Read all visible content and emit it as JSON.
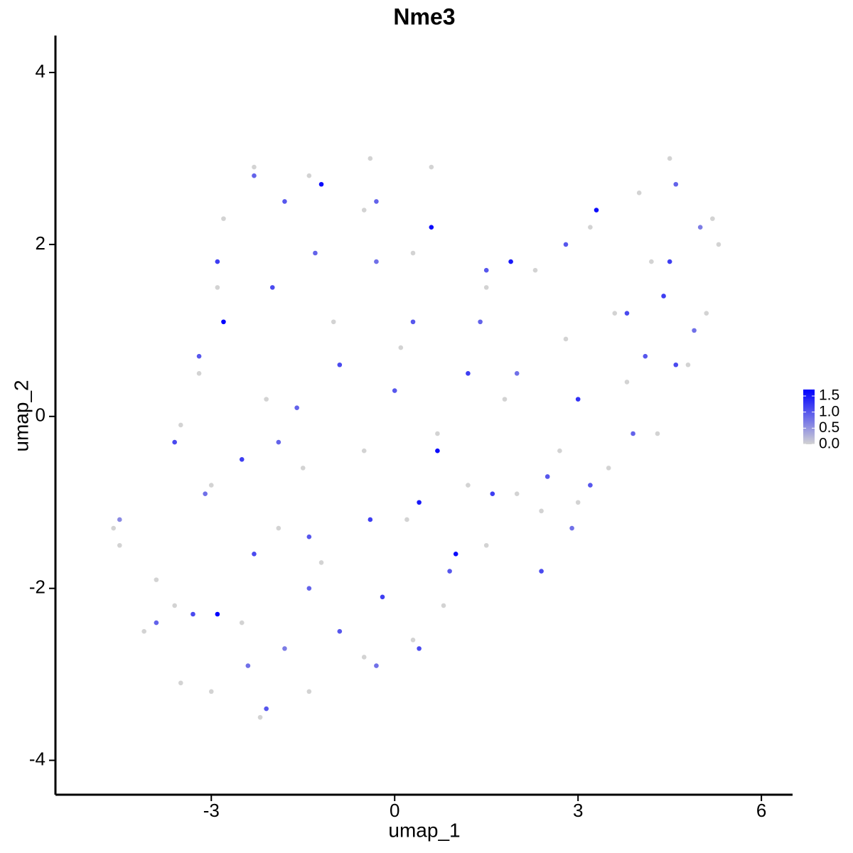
{
  "chart_data": {
    "type": "scatter",
    "title": "Nme3",
    "x_label": "umap_1",
    "y_label": "umap_2",
    "x": [
      -4.6,
      -4.5,
      -3.9,
      -4.1,
      -3.5,
      -3.0,
      -2.2,
      -1.4,
      -0.5,
      0.3,
      0.8,
      1.5,
      2.4,
      3.0,
      3.5,
      4.3,
      4.8,
      5.1,
      5.3,
      5.2,
      4.5,
      4.0,
      3.2,
      2.3,
      1.5,
      0.3,
      -0.5,
      -1.4,
      -2.3,
      -2.8,
      -2.9,
      -3.2,
      -3.5,
      -3.0,
      -1.5,
      -0.5,
      0.7,
      1.8,
      2.8,
      3.6,
      4.2,
      0.1,
      -1.0,
      -2.1,
      -1.2,
      0.2,
      1.2,
      2.0,
      2.7,
      3.8,
      -0.4,
      0.6,
      -2.5,
      -3.6,
      -1.9,
      -4.5,
      -3.9,
      -3.3,
      -2.9,
      -2.4,
      -2.1,
      -1.8,
      -1.4,
      -0.9,
      -0.3,
      0.4,
      0.9,
      1.0,
      1.6,
      2.4,
      2.9,
      3.2,
      3.9,
      4.6,
      4.9,
      5.0,
      4.6,
      4.5,
      3.3,
      2.8,
      1.9,
      1.5,
      0.6,
      -0.3,
      -1.2,
      -1.8,
      -2.3,
      -2.9,
      -2.8,
      -3.2,
      -3.6,
      -3.1,
      -2.5,
      -1.6,
      -0.9,
      -0.3,
      0.3,
      0.7,
      0.4,
      -0.4,
      -1.4,
      -2.3,
      1.2,
      2.0,
      3.0,
      3.8,
      4.1,
      -2.0,
      -1.3,
      0.0,
      1.4,
      2.5,
      -0.2,
      -1.9,
      4.4
    ],
    "y": [
      -1.3,
      -1.5,
      -1.9,
      -2.5,
      -3.1,
      -3.2,
      -3.5,
      -3.2,
      -2.8,
      -2.6,
      -2.2,
      -1.5,
      -1.1,
      -1.0,
      -0.6,
      -0.2,
      0.6,
      1.2,
      2.0,
      2.3,
      3.0,
      2.6,
      2.2,
      1.7,
      1.5,
      1.9,
      2.4,
      2.8,
      2.9,
      2.3,
      1.5,
      0.5,
      -0.1,
      -0.8,
      -0.6,
      -0.4,
      -0.2,
      0.2,
      0.9,
      1.2,
      1.8,
      0.8,
      1.1,
      0.2,
      -1.7,
      -1.2,
      -0.8,
      -0.9,
      -0.4,
      0.4,
      3.0,
      2.9,
      -2.4,
      -2.2,
      -1.3,
      -1.2,
      -2.4,
      -2.3,
      -2.3,
      -2.9,
      -3.4,
      -2.7,
      -2.0,
      -2.5,
      -2.9,
      -2.7,
      -1.8,
      -1.6,
      -0.9,
      -1.8,
      -1.3,
      -0.8,
      -0.2,
      0.6,
      1.0,
      2.2,
      2.7,
      1.8,
      2.4,
      2.0,
      1.8,
      1.7,
      2.2,
      2.5,
      2.7,
      2.5,
      2.8,
      1.8,
      1.1,
      0.7,
      -0.3,
      -0.9,
      -0.5,
      0.1,
      0.6,
      1.8,
      1.1,
      -0.4,
      -1.0,
      -1.2,
      -1.4,
      -1.6,
      0.5,
      0.5,
      0.2,
      1.2,
      0.7,
      1.5,
      1.9,
      0.3,
      1.1,
      -0.7,
      -2.1,
      -0.3,
      1.4
    ],
    "values": [
      0,
      0,
      0,
      0,
      0,
      0,
      0,
      0,
      0,
      0,
      0,
      0,
      0,
      0,
      0,
      0,
      0,
      0,
      0,
      0,
      0,
      0,
      0,
      0,
      0,
      0,
      0,
      0,
      0,
      0,
      0,
      0,
      0,
      0,
      0,
      0,
      0,
      0,
      0,
      0,
      0,
      0,
      0,
      0,
      0,
      0,
      0,
      0,
      0,
      0,
      0,
      0,
      0,
      0,
      0,
      0.6,
      0.9,
      1.1,
      1.7,
      0.8,
      1.0,
      0.7,
      0.9,
      1.0,
      0.8,
      1.1,
      1.0,
      1.6,
      1.2,
      1.1,
      0.8,
      1.0,
      0.9,
      1.1,
      0.8,
      0.7,
      0.9,
      1.2,
      1.6,
      1.0,
      1.5,
      1.0,
      1.6,
      0.9,
      1.6,
      1.0,
      0.9,
      1.2,
      1.7,
      1.0,
      1.1,
      0.8,
      1.2,
      0.9,
      1.1,
      0.8,
      1.0,
      1.6,
      1.5,
      1.2,
      1.0,
      1.1,
      1.2,
      0.8,
      1.3,
      1.1,
      1.0,
      1.1,
      0.9,
      1.0,
      0.9,
      1.0,
      1.2,
      0.9,
      1.2
    ],
    "color_low": "#d3d3d3",
    "color_high": "#0000ff",
    "color_lim": [
      0,
      1.7
    ],
    "colorbar_ticks": [
      {
        "value": 0,
        "label": "0.0"
      },
      {
        "value": 0.5,
        "label": "0.5"
      },
      {
        "value": 1,
        "label": "1.0"
      },
      {
        "value": 1.5,
        "label": "1.5"
      }
    ],
    "xlim": [
      -5.55,
      6.51
    ],
    "ylim": [
      -4.4,
      4.43
    ],
    "xticks": [
      -3,
      0,
      3,
      6
    ],
    "yticks": [
      -4,
      -2,
      0,
      2,
      4
    ],
    "grid": false
  }
}
